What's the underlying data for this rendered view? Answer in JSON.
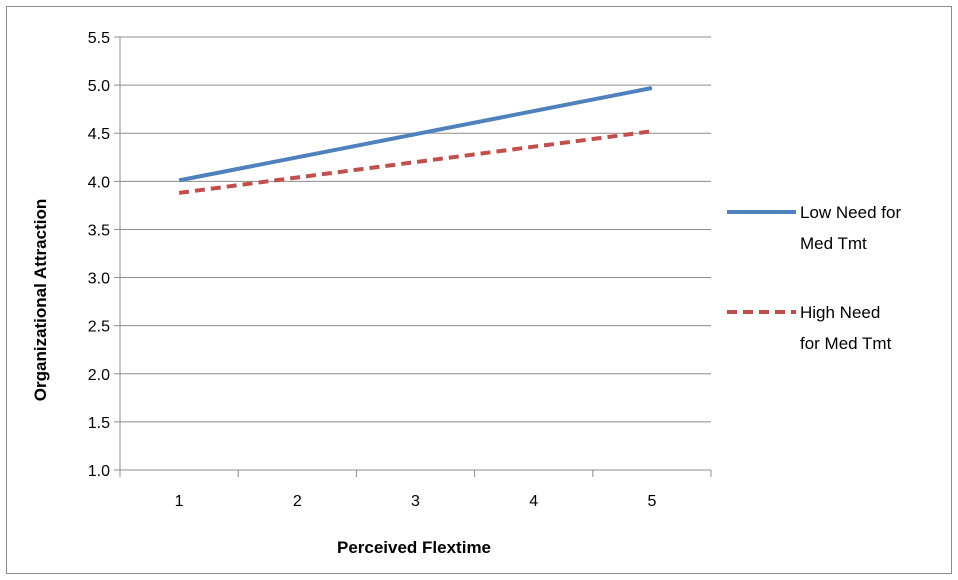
{
  "chart_data": {
    "type": "line",
    "title": "",
    "xlabel": "Perceived Flextime",
    "ylabel": "Organizational Attraction",
    "categories": [
      "1",
      "2",
      "3",
      "4",
      "5"
    ],
    "x": [
      1,
      2,
      3,
      4,
      5
    ],
    "ylim": [
      1.0,
      5.5
    ],
    "ytick_step": 0.5,
    "yticks": [
      "1.0",
      "1.5",
      "2.0",
      "2.5",
      "3.0",
      "3.5",
      "4.0",
      "4.5",
      "5.0",
      "5.5"
    ],
    "grid": "horizontal",
    "legend_position": "right",
    "series": [
      {
        "name_lines": [
          "Low Need for",
          "Med Tmt"
        ],
        "values": [
          4.01,
          4.25,
          4.49,
          4.73,
          4.97
        ],
        "color": "#4F81BD",
        "style": "solid"
      },
      {
        "name_lines": [
          "High Need",
          "for Med Tmt"
        ],
        "values": [
          3.88,
          4.04,
          4.2,
          4.36,
          4.52
        ],
        "color": "#C0504D",
        "style": "dashed"
      }
    ]
  }
}
